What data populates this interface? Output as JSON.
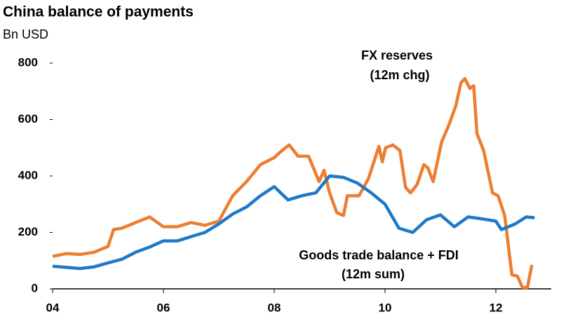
{
  "chart_data": {
    "type": "line",
    "title": "China balance of payments",
    "subtitle": "Bn USD",
    "xlim": [
      2004,
      2013
    ],
    "xticks": [
      {
        "value": 2004,
        "label": "04"
      },
      {
        "value": 2006,
        "label": "06"
      },
      {
        "value": 2008,
        "label": "08"
      },
      {
        "value": 2010,
        "label": "10"
      },
      {
        "value": 2012,
        "label": "12"
      }
    ],
    "ylim": [
      0,
      800
    ],
    "yticks": [
      0,
      200,
      400,
      600,
      800
    ],
    "annotations": [
      "FX reserves",
      "(12m chg)",
      "Goods trade balance + FDI",
      "(12m sum)"
    ],
    "series": [
      {
        "name": "FX reserves (12m chg)",
        "color": "#ED7D31",
        "x": [
          2004.0,
          2004.25,
          2004.5,
          2004.75,
          2005.0,
          2005.1,
          2005.25,
          2005.5,
          2005.75,
          2006.0,
          2006.25,
          2006.5,
          2006.75,
          2007.0,
          2007.25,
          2007.5,
          2007.75,
          2008.0,
          2008.11,
          2008.27,
          2008.43,
          2008.62,
          2008.81,
          2008.9,
          2009.0,
          2009.13,
          2009.25,
          2009.32,
          2009.53,
          2009.7,
          2009.89,
          2009.95,
          2010.01,
          2010.14,
          2010.27,
          2010.37,
          2010.46,
          2010.58,
          2010.7,
          2010.77,
          2010.87,
          2011.02,
          2011.15,
          2011.28,
          2011.37,
          2011.44,
          2011.53,
          2011.6,
          2011.66,
          2011.78,
          2011.94,
          2012.04,
          2012.16,
          2012.29,
          2012.39,
          2012.48,
          2012.57,
          2012.65
        ],
        "values": [
          115,
          125,
          122,
          130,
          150,
          210,
          215,
          235,
          255,
          220,
          220,
          235,
          225,
          240,
          330,
          380,
          440,
          465,
          485,
          510,
          470,
          470,
          380,
          420,
          340,
          270,
          260,
          330,
          330,
          390,
          505,
          450,
          500,
          510,
          490,
          360,
          340,
          370,
          440,
          430,
          380,
          520,
          580,
          650,
          730,
          745,
          710,
          720,
          550,
          490,
          340,
          330,
          260,
          50,
          45,
          5,
          5,
          85
        ]
      },
      {
        "name": "Goods trade balance + FDI (12m sum)",
        "color": "#1F78C8",
        "x": [
          2004.0,
          2004.25,
          2004.5,
          2004.75,
          2005.0,
          2005.25,
          2005.5,
          2005.75,
          2006.0,
          2006.25,
          2006.5,
          2006.75,
          2007.0,
          2007.25,
          2007.5,
          2007.75,
          2008.0,
          2008.25,
          2008.5,
          2008.75,
          2009.0,
          2009.25,
          2009.5,
          2009.75,
          2010.0,
          2010.25,
          2010.5,
          2010.75,
          2011.0,
          2011.25,
          2011.5,
          2011.75,
          2012.0,
          2012.1,
          2012.35,
          2012.55,
          2012.7
        ],
        "values": [
          80,
          76,
          72,
          78,
          92,
          105,
          130,
          148,
          170,
          170,
          185,
          200,
          230,
          265,
          290,
          330,
          362,
          315,
          330,
          340,
          400,
          395,
          375,
          340,
          300,
          215,
          200,
          245,
          262,
          220,
          255,
          248,
          240,
          210,
          230,
          255,
          252
        ]
      }
    ]
  }
}
